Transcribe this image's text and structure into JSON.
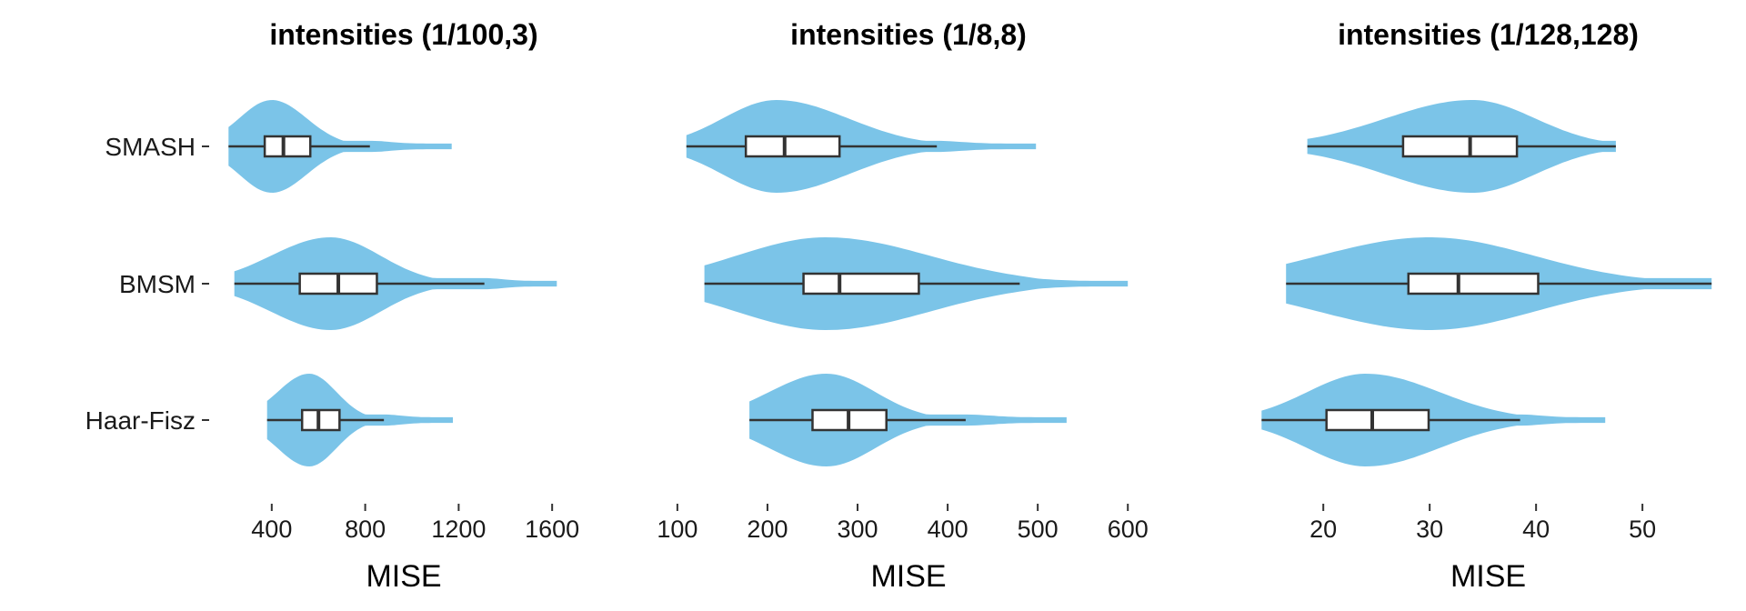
{
  "colors": {
    "violin_fill": "#7bc4e8",
    "box_fill": "#ffffff",
    "line": "#333333",
    "text": "#1a1a1a"
  },
  "chart_data": [
    {
      "type": "violin",
      "title": "intensities (1/100,3)",
      "xlabel": "MISE",
      "categories": [
        "SMASH",
        "BMSM",
        "Haar-Fisz"
      ],
      "xlim": [
        210,
        1720
      ],
      "xticks": [
        400,
        800,
        1200,
        1600
      ],
      "series": [
        {
          "category": "SMASH",
          "min": 215,
          "q1": 370,
          "median": 450,
          "q3": 565,
          "max": 820,
          "violin_max": 1170,
          "density_peak": 400
        },
        {
          "category": "BMSM",
          "min": 240,
          "q1": 520,
          "median": 685,
          "q3": 850,
          "max": 1310,
          "violin_max": 1620,
          "density_peak": 650
        },
        {
          "category": "Haar-Fisz",
          "min": 380,
          "q1": 530,
          "median": 600,
          "q3": 690,
          "max": 880,
          "violin_max": 1175,
          "density_peak": 560
        }
      ]
    },
    {
      "type": "violin",
      "title": "intensities (1/8,8)",
      "xlabel": "MISE",
      "categories": [
        "SMASH",
        "BMSM",
        "Haar-Fisz"
      ],
      "xlim": [
        88,
        625
      ],
      "xticks": [
        100,
        200,
        300,
        400,
        500,
        600
      ],
      "series": [
        {
          "category": "SMASH",
          "min": 110,
          "q1": 176,
          "median": 219,
          "q3": 280,
          "max": 388,
          "violin_max": 498,
          "density_peak": 210
        },
        {
          "category": "BMSM",
          "min": 130,
          "q1": 240,
          "median": 280,
          "q3": 368,
          "max": 480,
          "violin_max": 600,
          "density_peak": 265
        },
        {
          "category": "Haar-Fisz",
          "min": 180,
          "q1": 250,
          "median": 290,
          "q3": 332,
          "max": 420,
          "violin_max": 532,
          "density_peak": 265
        }
      ]
    },
    {
      "type": "violin",
      "title": "intensities (1/128,128)",
      "xlabel": "MISE",
      "categories": [
        "SMASH",
        "BMSM",
        "Haar-Fisz"
      ],
      "xlim": [
        14,
        57
      ],
      "xticks": [
        20,
        30,
        40,
        50
      ],
      "series": [
        {
          "category": "SMASH",
          "min": 18.5,
          "q1": 27.5,
          "median": 33.8,
          "q3": 38.2,
          "max": 47.5,
          "violin_max": 47.5,
          "density_peak": 34
        },
        {
          "category": "BMSM",
          "min": 16.5,
          "q1": 28.0,
          "median": 32.7,
          "q3": 40.2,
          "max": 56.5,
          "violin_max": 56.5,
          "density_peak": 30
        },
        {
          "category": "Haar-Fisz",
          "min": 14.2,
          "q1": 20.3,
          "median": 24.6,
          "q3": 29.9,
          "max": 38.5,
          "violin_max": 46.5,
          "density_peak": 24
        }
      ]
    }
  ]
}
